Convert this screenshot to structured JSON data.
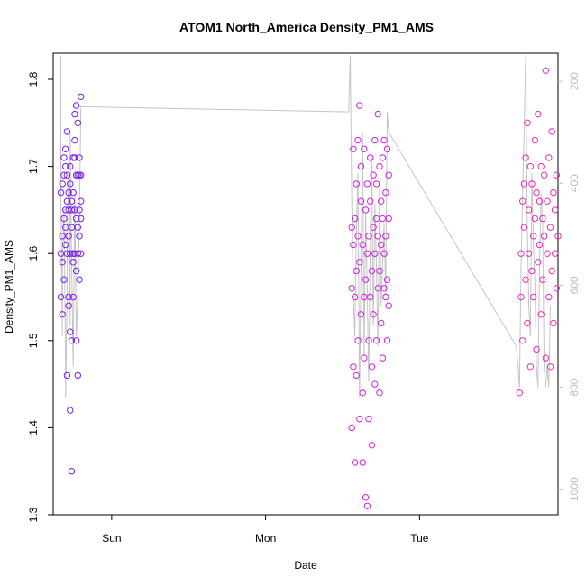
{
  "chart_data": {
    "type": "scatter",
    "title": "ATOM1 North_America Density_PM1_AMS",
    "xlabel": "Date",
    "ylabel": "Density_PM1_AMS",
    "x_tick_labels": [
      "Sun",
      "Mon",
      "Tue"
    ],
    "x_tick_positions": [
      0,
      1,
      2
    ],
    "x_unit": "days since Sunday 00:00",
    "xlim": [
      -0.38,
      2.9
    ],
    "ylim": [
      1.3,
      1.83
    ],
    "y_ticks": [
      1.3,
      1.4,
      1.5,
      1.6,
      1.7,
      1.8
    ],
    "right_axis": {
      "label": "",
      "ticks": [
        200,
        400,
        600,
        800,
        1000
      ],
      "lim": [
        1050,
        145
      ],
      "color": "#bdbdbd",
      "description": "grey line trace on inverted secondary axis"
    },
    "grid": false,
    "legend": "none",
    "colors": {
      "sun_points": "#7a1cf0",
      "mon_points": "#d21fe6",
      "tue_points": "#ee2ab8",
      "line": "#c4c4c4",
      "frame": "#000000"
    },
    "series": [
      {
        "x": [
          -0.33,
          -0.33,
          -0.33,
          -0.32,
          -0.32,
          -0.32,
          -0.32,
          -0.31,
          -0.31,
          -0.31,
          -0.31,
          -0.3,
          -0.3,
          -0.3,
          -0.3,
          -0.3,
          -0.29,
          -0.29,
          -0.29,
          -0.29,
          -0.29,
          -0.28,
          -0.28,
          -0.28,
          -0.28,
          -0.28,
          -0.27,
          -0.27,
          -0.27,
          -0.27,
          -0.27,
          -0.26,
          -0.26,
          -0.26,
          -0.26,
          -0.26,
          -0.25,
          -0.25,
          -0.25,
          -0.25,
          -0.25,
          -0.24,
          -0.24,
          -0.24,
          -0.24,
          -0.24,
          -0.23,
          -0.23,
          -0.23,
          -0.23,
          -0.23,
          -0.22,
          -0.22,
          -0.22,
          -0.22,
          -0.22,
          -0.21,
          -0.21,
          -0.21,
          -0.21,
          -0.21,
          -0.2,
          -0.2,
          -0.2,
          -0.2,
          -0.2
        ],
        "y": [
          1.67,
          1.55,
          1.6,
          1.68,
          1.62,
          1.53,
          1.59,
          1.69,
          1.64,
          1.71,
          1.57,
          1.65,
          1.72,
          1.61,
          1.7,
          1.63,
          1.74,
          1.66,
          1.46,
          1.6,
          1.69,
          1.65,
          1.55,
          1.54,
          1.67,
          1.62,
          1.42,
          1.51,
          1.6,
          1.68,
          1.7,
          1.35,
          1.5,
          1.65,
          1.63,
          1.66,
          1.55,
          1.59,
          1.71,
          1.6,
          1.67,
          1.76,
          1.73,
          1.65,
          1.6,
          1.71,
          1.69,
          1.64,
          1.77,
          1.58,
          1.5,
          1.75,
          1.63,
          1.69,
          1.46,
          1.6,
          1.65,
          1.62,
          1.71,
          1.69,
          1.57,
          1.78,
          1.66,
          1.6,
          1.64,
          1.69
        ]
      },
      {
        "x": [
          1.56,
          1.56,
          1.56,
          1.57,
          1.57,
          1.57,
          1.58,
          1.58,
          1.58,
          1.59,
          1.59,
          1.59,
          1.6,
          1.6,
          1.6,
          1.61,
          1.61,
          1.61,
          1.62,
          1.62,
          1.62,
          1.63,
          1.63,
          1.63,
          1.64,
          1.64,
          1.64,
          1.65,
          1.65,
          1.65,
          1.66,
          1.66,
          1.66,
          1.67,
          1.67,
          1.67,
          1.68,
          1.68,
          1.68,
          1.69,
          1.69,
          1.69,
          1.7,
          1.7,
          1.7,
          1.71,
          1.71,
          1.71,
          1.72,
          1.72,
          1.72,
          1.73,
          1.73,
          1.73,
          1.74,
          1.74,
          1.74,
          1.75,
          1.75,
          1.75,
          1.76,
          1.76,
          1.76,
          1.77,
          1.77,
          1.77,
          1.78,
          1.78,
          1.78,
          1.79,
          1.79,
          1.79,
          1.8,
          1.8,
          1.8
        ],
        "y": [
          1.63,
          1.4,
          1.56,
          1.72,
          1.61,
          1.47,
          1.36,
          1.64,
          1.55,
          1.68,
          1.58,
          1.46,
          1.62,
          1.5,
          1.73,
          1.77,
          1.59,
          1.41,
          1.66,
          1.53,
          1.7,
          1.36,
          1.44,
          1.61,
          1.72,
          1.55,
          1.48,
          1.65,
          1.32,
          1.57,
          1.6,
          1.68,
          1.31,
          1.5,
          1.62,
          1.41,
          1.71,
          1.55,
          1.66,
          1.58,
          1.38,
          1.47,
          1.63,
          1.53,
          1.69,
          1.73,
          1.6,
          1.45,
          1.64,
          1.5,
          1.68,
          1.56,
          1.76,
          1.62,
          1.58,
          1.44,
          1.7,
          1.52,
          1.66,
          1.61,
          1.71,
          1.48,
          1.64,
          1.56,
          1.6,
          1.73,
          1.55,
          1.67,
          1.62,
          1.72,
          1.5,
          1.57,
          1.64,
          1.69,
          1.54
        ]
      },
      {
        "x": [
          2.65,
          2.66,
          2.66,
          2.67,
          2.67,
          2.68,
          2.68,
          2.69,
          2.69,
          2.7,
          2.7,
          2.71,
          2.71,
          2.72,
          2.72,
          2.73,
          2.73,
          2.74,
          2.74,
          2.75,
          2.75,
          2.76,
          2.76,
          2.77,
          2.77,
          2.78,
          2.78,
          2.79,
          2.79,
          2.8,
          2.8,
          2.81,
          2.81,
          2.82,
          2.82,
          2.83,
          2.83,
          2.84,
          2.84,
          2.85,
          2.85,
          2.86,
          2.86,
          2.87,
          2.87,
          2.88,
          2.88,
          2.89,
          2.89,
          2.9
        ],
        "y": [
          1.44,
          1.6,
          1.55,
          1.66,
          1.5,
          1.68,
          1.63,
          1.57,
          1.71,
          1.52,
          1.75,
          1.6,
          1.65,
          1.47,
          1.7,
          1.58,
          1.68,
          1.62,
          1.55,
          1.73,
          1.64,
          1.49,
          1.67,
          1.59,
          1.76,
          1.61,
          1.66,
          1.53,
          1.7,
          1.64,
          1.57,
          1.69,
          1.62,
          1.81,
          1.48,
          1.66,
          1.6,
          1.55,
          1.71,
          1.47,
          1.63,
          1.58,
          1.74,
          1.67,
          1.52,
          1.65,
          1.6,
          1.69,
          1.56,
          1.62
        ]
      }
    ],
    "line": {
      "x": [
        -0.33,
        -0.33,
        -0.32,
        -0.32,
        -0.31,
        -0.3,
        -0.3,
        -0.29,
        -0.29,
        -0.28,
        -0.27,
        -0.27,
        -0.26,
        -0.25,
        -0.24,
        -0.23,
        -0.22,
        -0.21,
        -0.2,
        1.54,
        1.55,
        1.56,
        1.57,
        1.58,
        1.59,
        1.6,
        1.61,
        1.62,
        1.63,
        1.64,
        1.65,
        1.66,
        1.67,
        1.68,
        1.69,
        1.7,
        1.71,
        1.72,
        1.73,
        1.74,
        1.75,
        1.76,
        1.77,
        1.78,
        1.79,
        1.8,
        2.63,
        2.64,
        2.65,
        2.66,
        2.67,
        2.68,
        2.69,
        2.7,
        2.71,
        2.72,
        2.73,
        2.74,
        2.75,
        2.76,
        2.77,
        2.78,
        2.79,
        2.8,
        2.81,
        2.82,
        2.83,
        2.84,
        2.85
      ],
      "y": [
        150,
        420,
        700,
        550,
        450,
        760,
        820,
        620,
        500,
        380,
        680,
        300,
        560,
        760,
        420,
        700,
        620,
        480,
        250,
        260,
        150,
        440,
        620,
        700,
        500,
        380,
        820,
        560,
        300,
        740,
        460,
        600,
        790,
        520,
        350,
        680,
        440,
        560,
        720,
        400,
        640,
        560,
        480,
        620,
        260,
        300,
        720,
        760,
        800,
        560,
        420,
        300,
        150,
        480,
        640,
        700,
        380,
        520,
        600,
        760,
        800,
        560,
        420,
        480,
        760,
        800,
        760,
        800,
        640
      ]
    }
  }
}
